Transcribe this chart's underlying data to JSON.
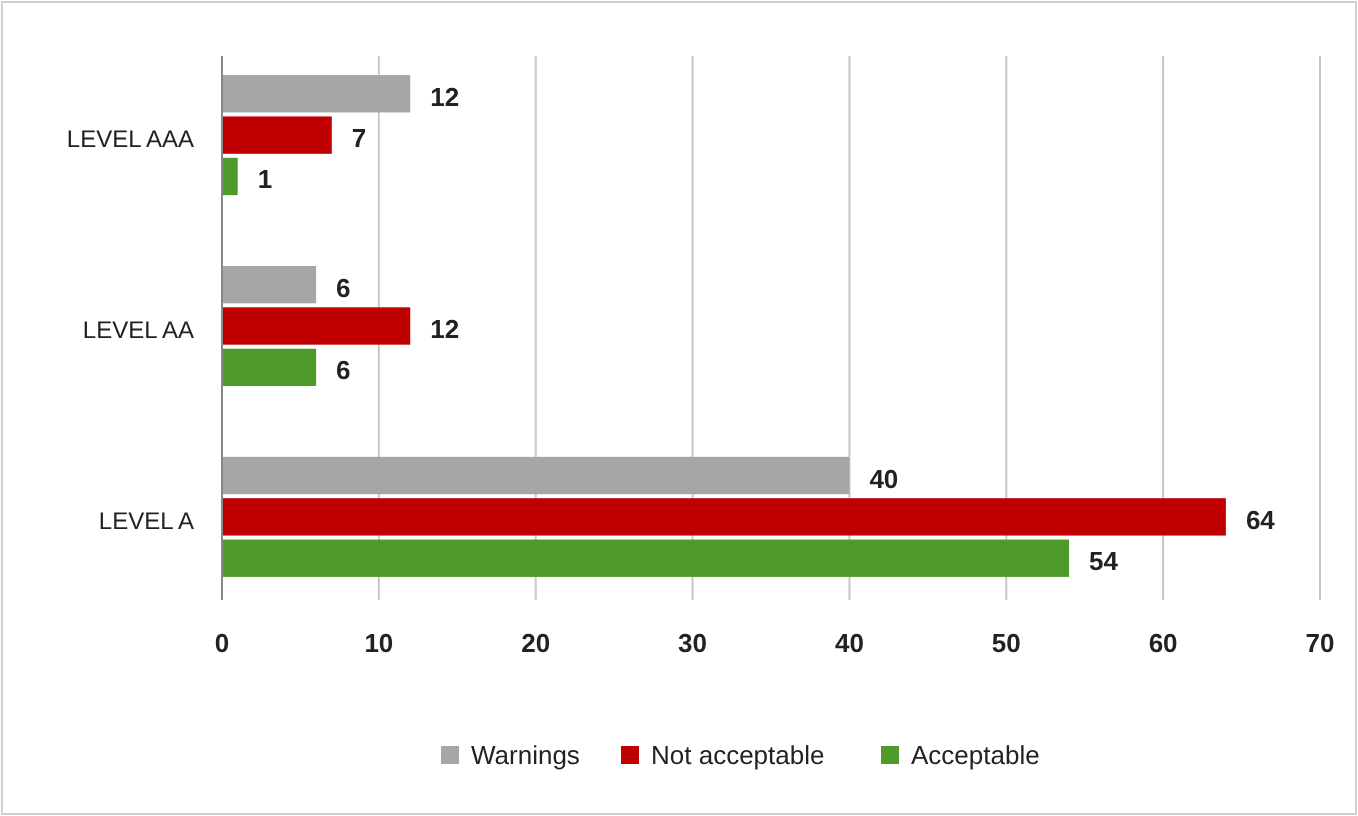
{
  "chart_data": {
    "type": "bar",
    "orientation": "horizontal",
    "categories": [
      "LEVEL AAA",
      "LEVEL AA",
      "LEVEL A"
    ],
    "series": [
      {
        "name": "Warnings",
        "color": "#a6a6a6",
        "values": [
          12,
          6,
          40
        ]
      },
      {
        "name": "Not acceptable",
        "color": "#c00000",
        "values": [
          7,
          12,
          64
        ]
      },
      {
        "name": "Acceptable",
        "color": "#4e9a2a",
        "values": [
          1,
          6,
          54
        ]
      }
    ],
    "xlim": [
      0,
      70
    ],
    "xticks": [
      0,
      10,
      20,
      30,
      40,
      50,
      60,
      70
    ],
    "grid": "x",
    "legend": "bottom",
    "data_labels": true
  }
}
